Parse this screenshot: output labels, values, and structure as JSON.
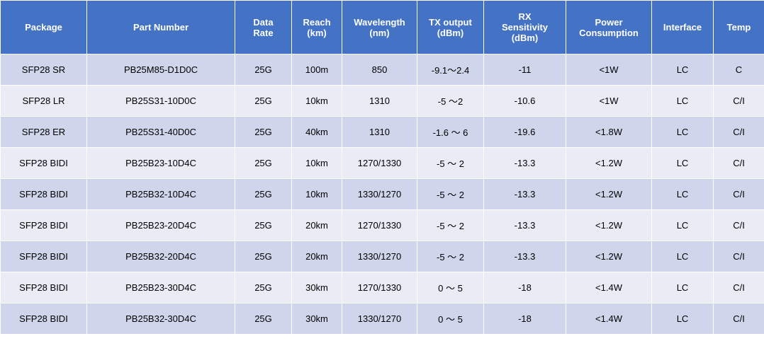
{
  "table": {
    "headers": [
      [
        "Package"
      ],
      [
        "Part Number"
      ],
      [
        "Data",
        "Rate"
      ],
      [
        "Reach",
        "(km)"
      ],
      [
        "Wavelength",
        "(nm)"
      ],
      [
        "TX output",
        "(dBm)"
      ],
      [
        "RX",
        "Sensitivity",
        "(dBm)"
      ],
      [
        "Power",
        "Consumption"
      ],
      [
        "Interface"
      ],
      [
        "Temp"
      ]
    ],
    "rows": [
      [
        "SFP28 SR",
        "PB25M85-D1D0C",
        "25G",
        "100m",
        "850",
        "-9.1～2.4",
        "-11",
        "<1W",
        "LC",
        "C"
      ],
      [
        "SFP28 LR",
        "PB25S31-10D0C",
        "25G",
        "10km",
        "1310",
        "-5 ～2",
        "-10.6",
        "<1W",
        "LC",
        "C/I"
      ],
      [
        "SFP28 ER",
        "PB25S31-40D0C",
        "25G",
        "40km",
        "1310",
        "-1.6 ～ 6",
        "-19.6",
        "<1.8W",
        "LC",
        "C/I"
      ],
      [
        "SFP28 BIDI",
        "PB25B23-10D4C",
        "25G",
        "10km",
        "1270/1330",
        "-5 ～ 2",
        "-13.3",
        "<1.2W",
        "LC",
        "C/I"
      ],
      [
        "SFP28 BIDI",
        "PB25B32-10D4C",
        "25G",
        "10km",
        "1330/1270",
        "-5 ～ 2",
        "-13.3",
        "<1.2W",
        "LC",
        "C/I"
      ],
      [
        "SFP28 BIDI",
        "PB25B23-20D4C",
        "25G",
        "20km",
        "1270/1330",
        "-5 ～ 2",
        "-13.3",
        "<1.2W",
        "LC",
        "C/I"
      ],
      [
        "SFP28 BIDI",
        "PB25B32-20D4C",
        "25G",
        "20km",
        "1330/1270",
        "-5 ～ 2",
        "-13.3",
        "<1.2W",
        "LC",
        "C/I"
      ],
      [
        "SFP28 BIDI",
        "PB25B23-30D4C",
        "25G",
        "30km",
        "1270/1330",
        "0 ～ 5",
        "-18",
        "<1.4W",
        "LC",
        "C/I"
      ],
      [
        "SFP28 BIDI",
        "PB25B32-30D4C",
        "25G",
        "30km",
        "1330/1270",
        "0 ～ 5",
        "-18",
        "<1.4W",
        "LC",
        "C/I"
      ]
    ]
  }
}
